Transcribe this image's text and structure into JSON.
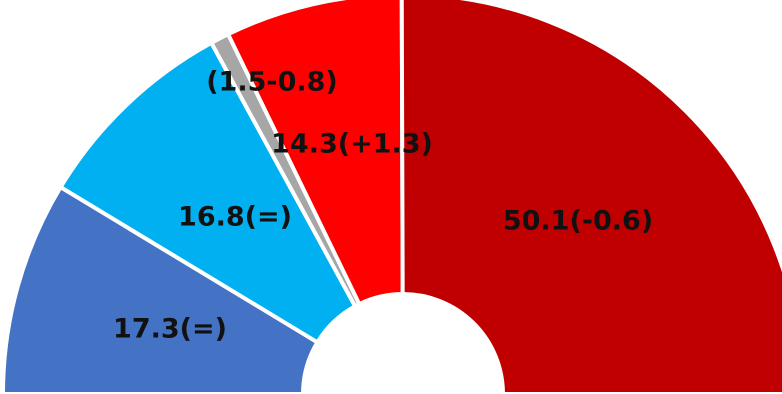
{
  "chart_data": {
    "type": "pie",
    "variant": "semicircle-donut",
    "title": "",
    "slices": [
      {
        "value": 17.3,
        "label": "17.3(=)",
        "color": "#4472C4"
      },
      {
        "value": 16.8,
        "label": "16.8(=)",
        "color": "#00B0F0"
      },
      {
        "value": 1.5,
        "label": "(1.5-0.8)",
        "color": "#A6A6A6"
      },
      {
        "value": 14.3,
        "label": "14.3(+1.3)",
        "color": "#FF0000"
      },
      {
        "value": 50.1,
        "label": "50.1(-0.6)",
        "color": "#C00000"
      }
    ]
  }
}
